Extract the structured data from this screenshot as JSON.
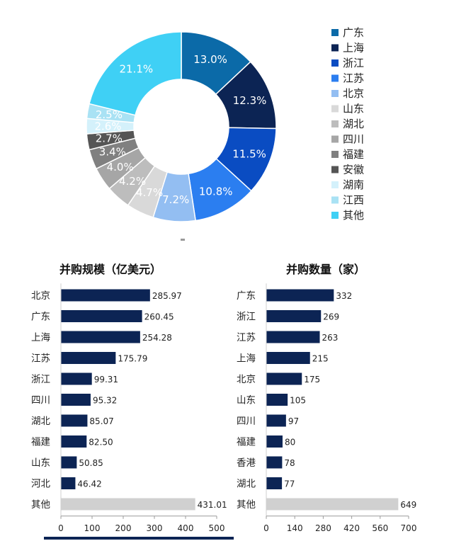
{
  "chart_data": [
    {
      "type": "pie",
      "donut": true,
      "legend_position": "right",
      "series": [
        {
          "name": "广东",
          "value": 13.0,
          "label": "13.0%",
          "color": "#0b6aa8"
        },
        {
          "name": "上海",
          "value": 12.3,
          "label": "12.3%",
          "color": "#0c2454"
        },
        {
          "name": "浙江",
          "value": 11.5,
          "label": "11.5%",
          "color": "#0a4cc2"
        },
        {
          "name": "江苏",
          "value": 10.8,
          "label": "10.8%",
          "color": "#2b7ef0"
        },
        {
          "name": "北京",
          "value": 7.2,
          "label": "7.2%",
          "color": "#93bef2"
        },
        {
          "name": "山东",
          "value": 4.7,
          "label": "4.7%",
          "color": "#d9d9d9"
        },
        {
          "name": "湖北",
          "value": 4.2,
          "label": "4.2%",
          "color": "#bdbdbd"
        },
        {
          "name": "四川",
          "value": 4.0,
          "label": "4.0%",
          "color": "#a6a6a6"
        },
        {
          "name": "福建",
          "value": 3.4,
          "label": "3.4%",
          "color": "#808080"
        },
        {
          "name": "安徽",
          "value": 2.7,
          "label": "2.7%",
          "color": "#555555"
        },
        {
          "name": "湖南",
          "value": 2.6,
          "label": "2.6%",
          "color": "#d4f1fb"
        },
        {
          "name": "江西",
          "value": 2.5,
          "label": "2.5%",
          "color": "#a9e2f4"
        },
        {
          "name": "其他",
          "value": 21.1,
          "label": "21.1%",
          "color": "#3fd0f5"
        }
      ]
    },
    {
      "type": "bar",
      "orientation": "horizontal",
      "title": "并购规模（亿美元）",
      "categories": [
        "北京",
        "广东",
        "上海",
        "江苏",
        "浙江",
        "四川",
        "湖北",
        "福建",
        "山东",
        "河北",
        "其他"
      ],
      "values": [
        285.97,
        260.45,
        254.28,
        175.79,
        99.31,
        95.32,
        85.07,
        82.5,
        50.85,
        46.42,
        431.01
      ],
      "value_labels": [
        "285.97",
        "260.45",
        "254.28",
        "175.79",
        "99.31",
        "95.32",
        "85.07",
        "82.50",
        "50.85",
        "46.42",
        "431.01"
      ],
      "xlim": [
        0,
        500
      ],
      "xticks": [
        "0",
        "100",
        "200",
        "300",
        "400",
        "500"
      ],
      "bar_color": "#0c2454",
      "other_color": "#d0d0d0"
    },
    {
      "type": "bar",
      "orientation": "horizontal",
      "title": "并购数量（家）",
      "categories": [
        "广东",
        "浙江",
        "江苏",
        "上海",
        "北京",
        "山东",
        "四川",
        "福建",
        "香港",
        "湖北",
        "其他"
      ],
      "values": [
        332,
        269,
        263,
        215,
        175,
        105,
        97,
        80,
        78,
        77,
        649
      ],
      "value_labels": [
        "332",
        "269",
        "263",
        "215",
        "175",
        "105",
        "97",
        "80",
        "78",
        "77",
        "649"
      ],
      "xlim": [
        0,
        700
      ],
      "xticks": [
        "0",
        "140",
        "280",
        "420",
        "560",
        "700"
      ],
      "bar_color": "#0c2454",
      "other_color": "#d0d0d0"
    }
  ]
}
